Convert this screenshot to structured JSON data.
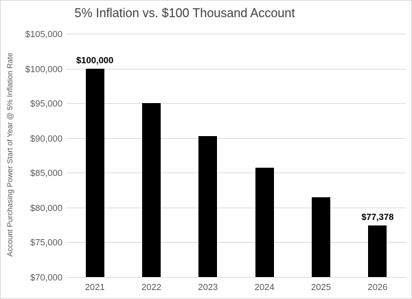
{
  "chart_data": {
    "type": "bar",
    "title": "5% Inflation vs. $100 Thousand Account",
    "ylabel": "Account Purchasing Power Start of Year @ 5% Inflation Rate",
    "xlabel": "",
    "categories": [
      "2021",
      "2022",
      "2023",
      "2024",
      "2025",
      "2026"
    ],
    "values": [
      100000,
      95000,
      90250,
      85738,
      81451,
      77378
    ],
    "bar_labels": [
      "$100,000",
      "",
      "",
      "",
      "",
      "$77,378"
    ],
    "y_ticks": [
      {
        "label": "$70,000",
        "value": 70000
      },
      {
        "label": "$75,000",
        "value": 75000
      },
      {
        "label": "$80,000",
        "value": 80000
      },
      {
        "label": "$85,000",
        "value": 85000
      },
      {
        "label": "$90,000",
        "value": 90000
      },
      {
        "label": "$95,000",
        "value": 95000
      },
      {
        "label": "$100,000",
        "value": 100000
      },
      {
        "label": "$105,000",
        "value": 105000
      }
    ],
    "ylim": [
      70000,
      105000
    ],
    "grid": true,
    "legend": "none",
    "colors": {
      "bar": "#000000",
      "gridline": "#d9d9d9",
      "tick_text": "#595959",
      "title_text": "#404040",
      "data_label_text": "#000000",
      "frame_border": "#d9d9d9",
      "background": "#ffffff"
    }
  }
}
